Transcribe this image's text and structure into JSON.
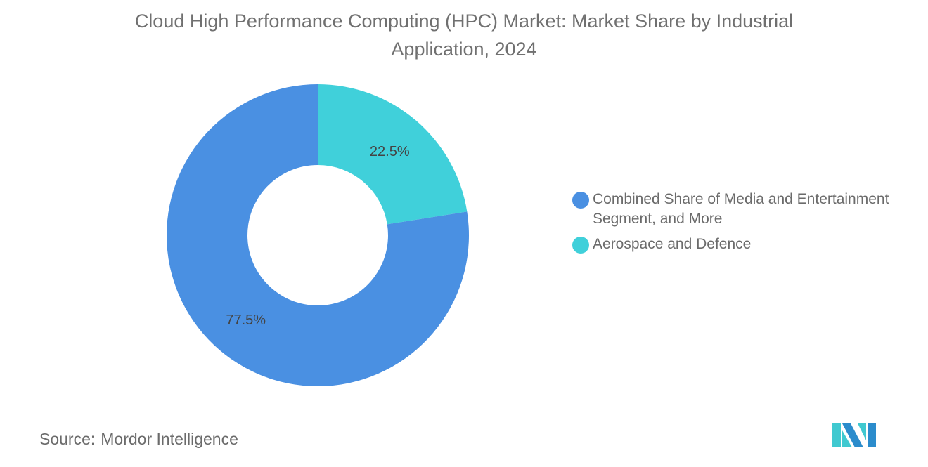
{
  "chart_data": {
    "type": "pie",
    "donut": true,
    "title": "Cloud High Performance Computing (HPC) Market: Market Share by Industrial Application, 2024",
    "slices": [
      {
        "label": "Aerospace and Defence",
        "value": 22.5,
        "display": "22.5%",
        "color": "#40d0da"
      },
      {
        "label": "Combined Share of Media and Entertainment Segment, and More",
        "value": 77.5,
        "display": "77.5%",
        "color": "#4a90e2"
      }
    ],
    "legend": {
      "placement": "right",
      "items": [
        {
          "label": "Combined Share of Media and Entertainment Segment, and More",
          "color": "#4a90e2"
        },
        {
          "label": "Aerospace and Defence",
          "color": "#40d0da"
        }
      ]
    }
  },
  "source": {
    "label": "Source:",
    "value": "Mordor Intelligence"
  },
  "logo": {
    "text": "Mordor Intelligence",
    "colors": [
      "#2b8ccc",
      "#40c9d0"
    ]
  }
}
